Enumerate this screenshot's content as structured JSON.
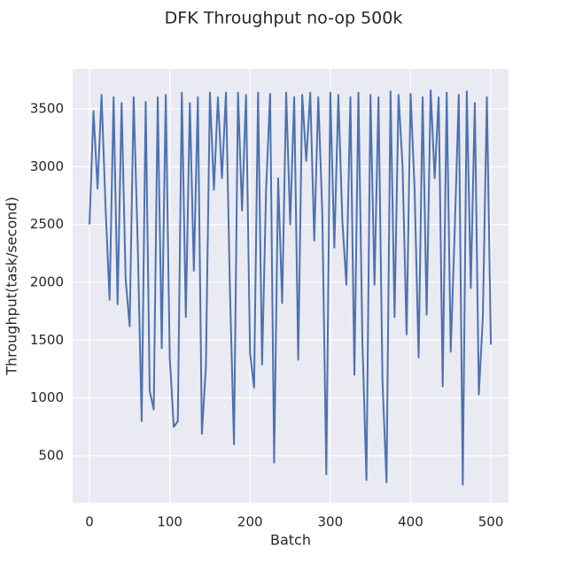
{
  "chart_data": {
    "type": "line",
    "title": "DFK Throughput no-op 500k",
    "x_label": "Batch",
    "y_label": "Throughput(task/second)",
    "color": "#4c72b0",
    "grid": true,
    "x": [
      0,
      5,
      10,
      15,
      20,
      25,
      30,
      35,
      40,
      45,
      50,
      55,
      60,
      65,
      70,
      75,
      80,
      85,
      90,
      95,
      100,
      105,
      110,
      115,
      120,
      125,
      130,
      135,
      140,
      145,
      150,
      155,
      160,
      165,
      170,
      175,
      180,
      185,
      190,
      195,
      200,
      205,
      210,
      215,
      220,
      225,
      230,
      235,
      240,
      245,
      250,
      255,
      260,
      265,
      270,
      275,
      280,
      285,
      290,
      295,
      300,
      305,
      310,
      315,
      320,
      325,
      330,
      335,
      340,
      345,
      350,
      355,
      360,
      365,
      370,
      375,
      380,
      385,
      390,
      395,
      400,
      405,
      410,
      415,
      420,
      425,
      430,
      435,
      440,
      445,
      450,
      455,
      460,
      465,
      470,
      475,
      480,
      485,
      490,
      495,
      500
    ],
    "values": [
      2500,
      3480,
      2810,
      3620,
      2650,
      1850,
      3600,
      1810,
      3550,
      2030,
      1620,
      3600,
      2350,
      800,
      3560,
      1060,
      900,
      3600,
      1430,
      3620,
      1340,
      750,
      800,
      3640,
      1700,
      3550,
      2100,
      3600,
      690,
      1270,
      3640,
      2800,
      3600,
      2900,
      3640,
      1920,
      600,
      3640,
      2620,
      3620,
      1390,
      1090,
      3640,
      1290,
      2800,
      3630,
      440,
      2900,
      1820,
      3640,
      2500,
      3600,
      1330,
      3620,
      3050,
      3640,
      2360,
      3600,
      2600,
      340,
      3640,
      2300,
      3620,
      2530,
      1980,
      3600,
      1200,
      3640,
      1480,
      290,
      3620,
      1980,
      3600,
      1140,
      270,
      3650,
      1700,
      3620,
      3000,
      1550,
      3630,
      2800,
      1350,
      3600,
      1720,
      3660,
      2900,
      3600,
      1100,
      3640,
      1400,
      2450,
      3620,
      250,
      3650,
      1950,
      3550,
      1030,
      1700,
      3600,
      1460
    ],
    "xlim": [
      -21,
      522
    ],
    "ylim": [
      94,
      3844
    ],
    "xticks": [
      0,
      100,
      200,
      300,
      400,
      500
    ],
    "yticks": [
      500,
      1000,
      1500,
      2000,
      2500,
      3000,
      3500
    ]
  }
}
